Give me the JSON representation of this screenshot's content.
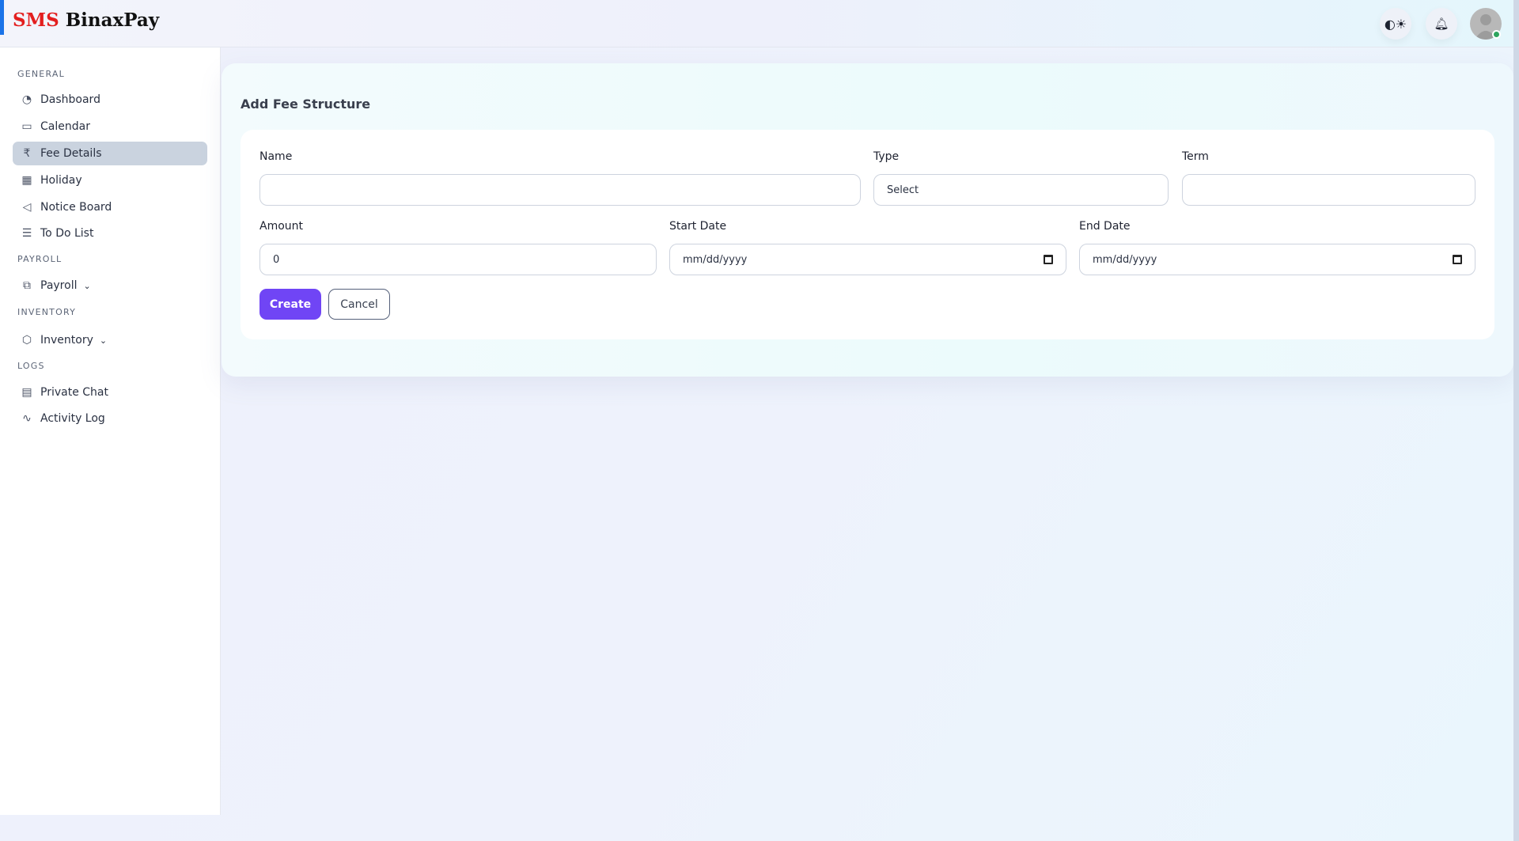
{
  "brand": {
    "part1": "SMS",
    "part2": "BinaxPay"
  },
  "header": {
    "icons": [
      "theme-toggle-icon",
      "bell-icon",
      "avatar-icon"
    ],
    "online_color": "#2ea55f"
  },
  "sidebar": {
    "sections": {
      "general": "GENERAL",
      "payroll": "PAYROLL",
      "inventory": "INVENTORY",
      "logs": "LOGS"
    },
    "items": [
      {
        "label": "Dashboard",
        "icon": "gauge-icon"
      },
      {
        "label": "Calendar",
        "icon": "calendar-icon"
      },
      {
        "label": "Fee Details",
        "icon": "rupee-icon",
        "active": true
      },
      {
        "label": "Holiday",
        "icon": "calendar-days-icon"
      },
      {
        "label": "Notice Board",
        "icon": "megaphone-icon"
      },
      {
        "label": "To Do List",
        "icon": "list-icon"
      },
      {
        "label": "Payroll",
        "icon": "payroll-icon"
      },
      {
        "label": "Inventory",
        "icon": "box-icon"
      },
      {
        "label": "Private Chat",
        "icon": "chat-icon"
      },
      {
        "label": "Activity Log",
        "icon": "activity-icon"
      }
    ]
  },
  "page": {
    "title": "Add Fee Structure"
  },
  "form": {
    "name": {
      "label": "Name",
      "value": ""
    },
    "type": {
      "label": "Type",
      "value": "Select"
    },
    "term": {
      "label": "Term",
      "value": ""
    },
    "amount": {
      "label": "Amount",
      "value": "0"
    },
    "start_date": {
      "label": "Start Date",
      "placeholder": "mm/dd/yyyy"
    },
    "end_date": {
      "label": "End Date",
      "placeholder": "mm/dd/yyyy"
    },
    "create_label": "Create",
    "cancel_label": "Cancel"
  },
  "colors": {
    "accent": "#7045f5",
    "active_item": "#cad3df",
    "brand_red": "#e31e1e"
  }
}
